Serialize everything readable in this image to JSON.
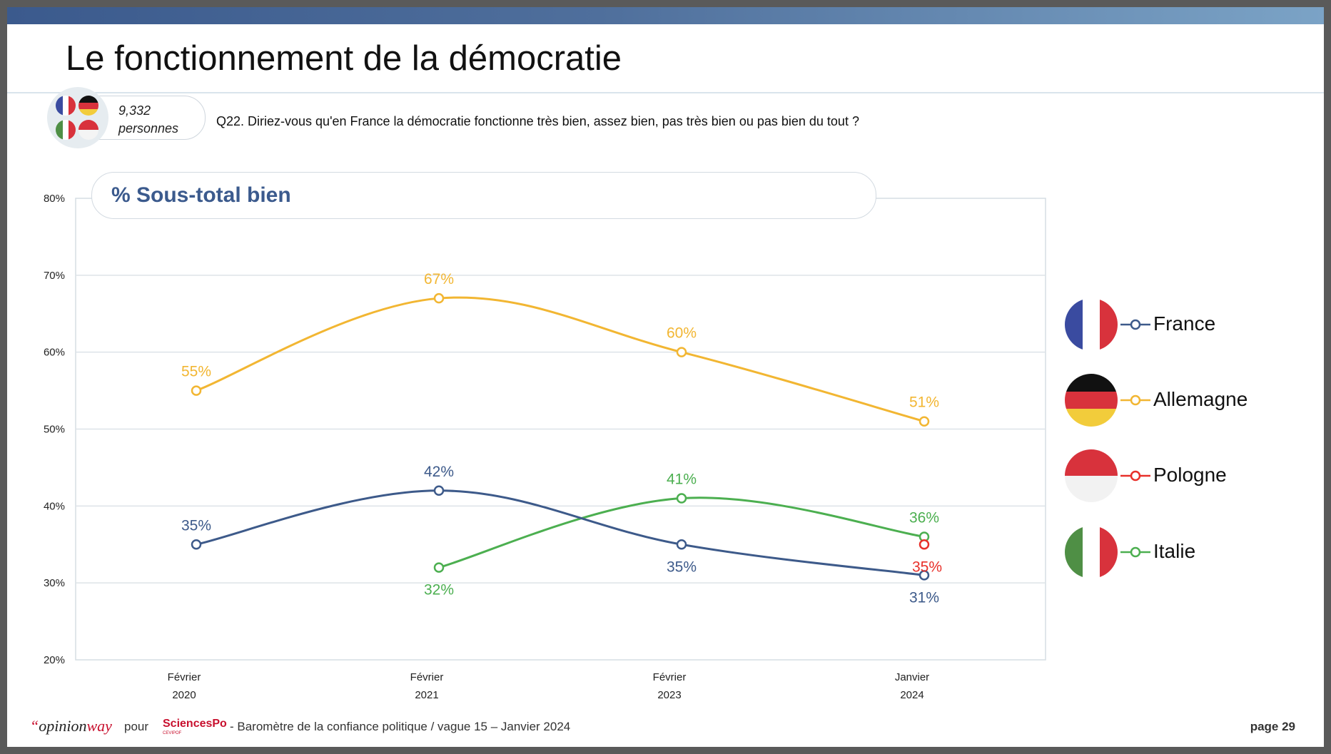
{
  "slide": {
    "title": "Le fonctionnement de la démocratie",
    "sample": {
      "count": "9,332",
      "unit": "personnes"
    },
    "question": "Q22. Diriez-vous qu'en France la démocratie fonctionne très bien, assez bien, pas très bien ou pas bien du tout ?"
  },
  "chart_data": {
    "type": "line",
    "title": "% Sous-total bien",
    "x": [
      {
        "line1": "Février",
        "line2": "2020"
      },
      {
        "line1": "Février",
        "line2": "2021"
      },
      {
        "line1": "Février",
        "line2": "2023"
      },
      {
        "line1": "Janvier",
        "line2": "2024"
      }
    ],
    "y_ticks": [
      "80%",
      "70%",
      "60%",
      "50%",
      "40%",
      "30%",
      "20%"
    ],
    "ylim": [
      20,
      80
    ],
    "grid": true,
    "legend_position": "right",
    "series": [
      {
        "name": "France",
        "color": "#3d5a8a",
        "values": [
          35,
          42,
          35,
          31
        ],
        "labels": [
          "35%",
          "42%",
          "35%",
          "31%"
        ],
        "label_pos": [
          "above",
          "above",
          "below",
          "below"
        ],
        "flag": "france-flag-icon"
      },
      {
        "name": "Allemagne",
        "color": "#f2b632",
        "values": [
          55,
          67,
          60,
          51
        ],
        "labels": [
          "55%",
          "67%",
          "60%",
          "51%"
        ],
        "label_pos": [
          "above",
          "above",
          "above",
          "above"
        ],
        "flag": "germany-flag-icon"
      },
      {
        "name": "Pologne",
        "color": "#e8302a",
        "values": [
          null,
          null,
          null,
          35
        ],
        "labels": [
          null,
          null,
          null,
          "35%"
        ],
        "label_pos": [
          null,
          null,
          null,
          "below"
        ],
        "flag": "poland-flag-icon"
      },
      {
        "name": "Italie",
        "color": "#4caf50",
        "values": [
          null,
          32,
          41,
          36
        ],
        "labels": [
          null,
          "32%",
          "41%",
          "36%"
        ],
        "label_pos": [
          null,
          "below",
          "above",
          "above"
        ],
        "flag": "italy-flag-icon"
      }
    ]
  },
  "footer": {
    "logo_quote": "“",
    "logo_opinion": "opinion",
    "logo_way": "way",
    "pour": "pour",
    "partner": "SciencesPo",
    "partner_sub": "CEVIPOF",
    "text": "-  Baromètre de la confiance politique / vague 15 – Janvier 2024",
    "page": "page 29"
  }
}
